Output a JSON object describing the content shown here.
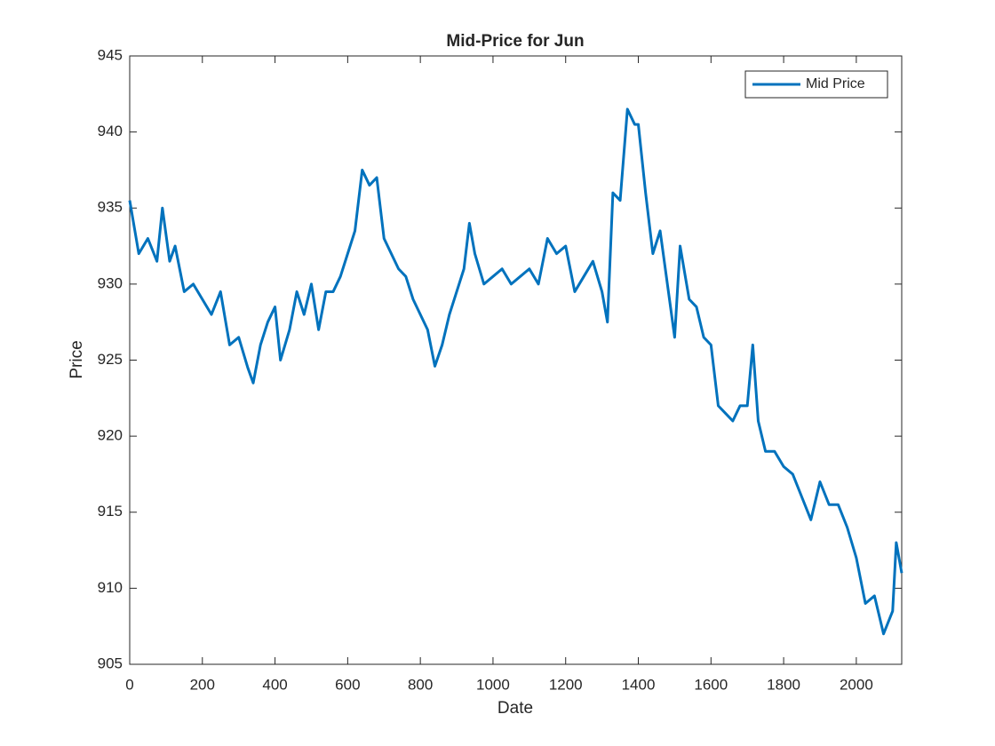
{
  "chart_data": {
    "type": "line",
    "title": "Mid-Price for Jun",
    "x_label": "Date",
    "y_label": "Price",
    "x": [
      0,
      25,
      50,
      75,
      90,
      110,
      125,
      150,
      175,
      200,
      225,
      250,
      275,
      300,
      325,
      340,
      360,
      380,
      400,
      415,
      440,
      460,
      480,
      500,
      520,
      540,
      560,
      580,
      600,
      620,
      640,
      660,
      680,
      700,
      720,
      740,
      760,
      780,
      800,
      820,
      840,
      860,
      880,
      900,
      920,
      935,
      950,
      975,
      1000,
      1025,
      1050,
      1075,
      1100,
      1125,
      1150,
      1175,
      1200,
      1225,
      1250,
      1275,
      1300,
      1315,
      1330,
      1350,
      1370,
      1390,
      1400,
      1420,
      1440,
      1460,
      1480,
      1500,
      1515,
      1540,
      1560,
      1580,
      1600,
      1620,
      1640,
      1660,
      1680,
      1700,
      1715,
      1730,
      1750,
      1775,
      1800,
      1825,
      1850,
      1875,
      1900,
      1925,
      1950,
      1975,
      2000,
      2025,
      2050,
      2075,
      2100,
      2110,
      2125
    ],
    "series": [
      {
        "name": "Mid Price",
        "color": "#0072bd",
        "values": [
          935.5,
          932,
          933,
          931.5,
          935,
          931.5,
          932.5,
          929.5,
          930,
          929,
          928,
          929.5,
          926,
          926.5,
          924.5,
          923.5,
          926,
          927.5,
          928.5,
          925,
          927,
          929.5,
          928,
          930,
          927,
          929.5,
          929.5,
          930.5,
          932,
          933.5,
          937.5,
          936.5,
          937,
          933,
          932,
          931,
          930.5,
          929,
          928,
          927,
          924.6,
          926,
          928,
          929.5,
          931,
          934,
          932,
          930,
          930.5,
          931,
          930,
          930.5,
          931,
          930,
          933,
          932,
          932.5,
          929.5,
          930.5,
          931.5,
          929.5,
          927.5,
          936,
          935.5,
          941.5,
          940.5,
          940.5,
          936,
          932,
          933.5,
          930,
          926.5,
          932.5,
          929,
          928.5,
          926.5,
          926,
          922,
          921.5,
          921,
          922,
          922,
          926,
          921,
          919,
          919,
          918,
          917.5,
          916,
          914.5,
          917,
          915.5,
          915.5,
          914,
          912,
          909,
          909.5,
          907,
          908.5,
          913,
          911
        ]
      }
    ],
    "xlim": [
      0,
      2125
    ],
    "ylim": [
      905,
      945
    ],
    "xticks": [
      0,
      200,
      400,
      600,
      800,
      1000,
      1200,
      1400,
      1600,
      1800,
      2000
    ],
    "yticks": [
      905,
      910,
      915,
      920,
      925,
      930,
      935,
      940,
      945
    ],
    "legend": "northeast"
  }
}
